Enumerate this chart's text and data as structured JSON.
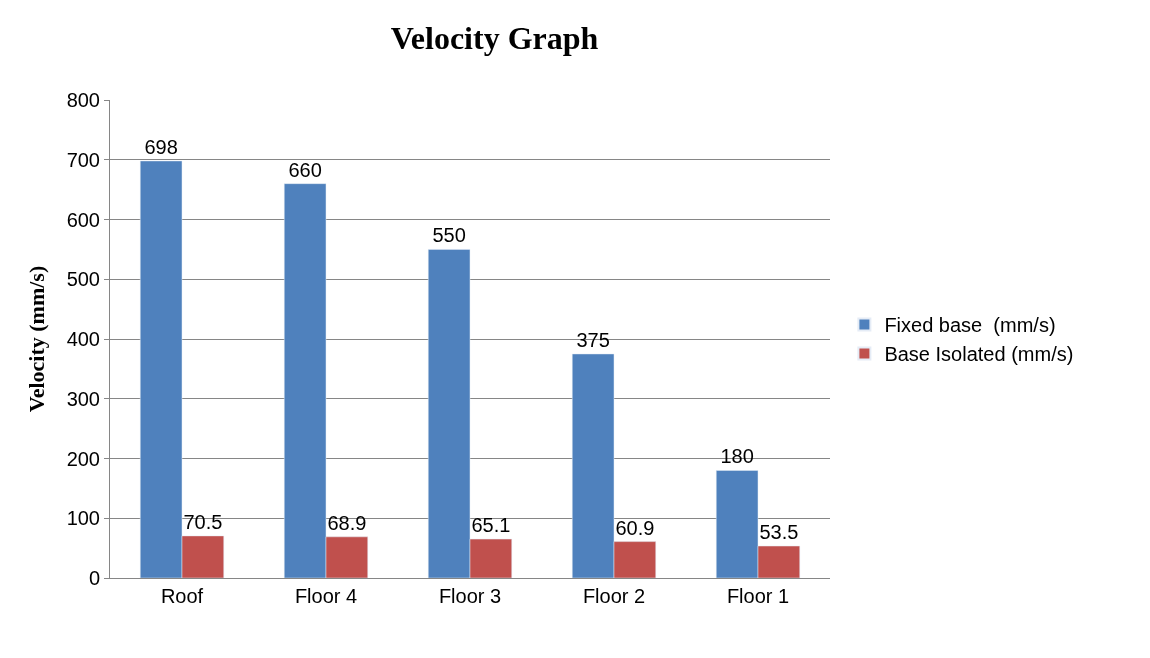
{
  "chart_data": {
    "type": "bar",
    "title": "Velocity Graph",
    "ylabel": "Velocity (mm/s)",
    "categories": [
      "Roof",
      "Floor 4",
      "Floor 3",
      "Floor 2",
      "Floor 1"
    ],
    "series": [
      {
        "name": "Fixed base  (mm/s)",
        "color": "#4f81bd",
        "values": [
          698,
          660,
          550,
          375,
          180
        ]
      },
      {
        "name": "Base Isolated (mm/s)",
        "color": "#c0504d",
        "values": [
          70.5,
          68.9,
          65.1,
          60.9,
          53.5
        ]
      }
    ],
    "ylim": [
      0,
      800
    ],
    "yticks": [
      0,
      100,
      200,
      300,
      400,
      500,
      600,
      700,
      800
    ],
    "grid": "y",
    "legend": "right",
    "data_labels": true
  }
}
